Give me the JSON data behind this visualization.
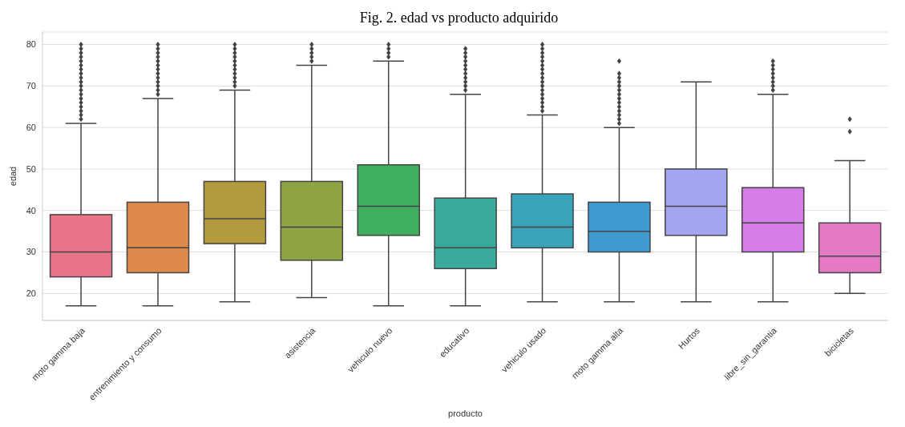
{
  "chart_data": {
    "type": "box",
    "title": "Fig. 2. edad vs producto adquirido",
    "xlabel": "producto",
    "ylabel": "edad",
    "categories": [
      "moto gamma baja",
      "entrenimiento y consumo",
      null,
      "asistencia",
      "vehiculo nuevo",
      "educativo",
      "vehiculo usado",
      "moto gamma alta",
      "Hurtos",
      "libre_sin_garantia",
      "bicicletas"
    ],
    "colors": [
      "#e8748a",
      "#dd8a4a",
      "#b39a3e",
      "#8fa443",
      "#3fae5f",
      "#3aab9a",
      "#3aa2b9",
      "#3f9ad0",
      "#a4a5f0",
      "#d67ce8",
      "#e47ac4"
    ],
    "boxes": [
      {
        "low": 17,
        "q1": 24,
        "median": 30,
        "q3": 39,
        "high": 61,
        "outliers": [
          62,
          63,
          64,
          65,
          66,
          67,
          68,
          69,
          70,
          71,
          72,
          73,
          74,
          75,
          76,
          77,
          78,
          79,
          80
        ]
      },
      {
        "low": 17,
        "q1": 25,
        "median": 31,
        "q3": 42,
        "high": 67,
        "outliers": [
          68,
          69,
          70,
          71,
          72,
          73,
          74,
          75,
          76,
          77,
          78,
          79,
          80
        ]
      },
      {
        "low": 18,
        "q1": 32,
        "median": 38,
        "q3": 47,
        "high": 69,
        "outliers": [
          70,
          71,
          72,
          73,
          74,
          75,
          76,
          77,
          78,
          79,
          80
        ]
      },
      {
        "low": 19,
        "q1": 28,
        "median": 36,
        "q3": 47,
        "high": 75,
        "outliers": [
          76,
          77,
          78,
          79,
          80
        ]
      },
      {
        "low": 17,
        "q1": 34,
        "median": 41,
        "q3": 51,
        "high": 76,
        "outliers": [
          77,
          78,
          79,
          80
        ]
      },
      {
        "low": 17,
        "q1": 26,
        "median": 31,
        "q3": 43,
        "high": 68,
        "outliers": [
          69,
          70,
          71,
          72,
          73,
          74,
          75,
          76,
          77,
          78,
          79
        ]
      },
      {
        "low": 18,
        "q1": 31,
        "median": 36,
        "q3": 44,
        "high": 63,
        "outliers": [
          64,
          65,
          66,
          67,
          68,
          69,
          70,
          71,
          72,
          73,
          74,
          75,
          76,
          77,
          78,
          79,
          80
        ]
      },
      {
        "low": 18,
        "q1": 30,
        "median": 35,
        "q3": 42,
        "high": 60,
        "outliers": [
          61,
          62,
          63,
          64,
          65,
          66,
          67,
          68,
          69,
          70,
          71,
          72,
          73,
          76
        ]
      },
      {
        "low": 18,
        "q1": 34,
        "median": 41,
        "q3": 50,
        "high": 71
      },
      {
        "low": 18,
        "q1": 30,
        "median": 37,
        "q3": 45.5,
        "high": 68,
        "outliers": [
          69,
          70,
          71,
          72,
          73,
          74,
          75,
          76
        ]
      },
      {
        "low": 20,
        "q1": 25,
        "median": 29,
        "q3": 37,
        "high": 52,
        "outliers": [
          59,
          62
        ]
      }
    ],
    "ylim": [
      13.5,
      83
    ],
    "yticks": [
      20,
      30,
      40,
      50,
      60,
      70,
      80
    ],
    "grid": "y",
    "marker": "diamond"
  }
}
